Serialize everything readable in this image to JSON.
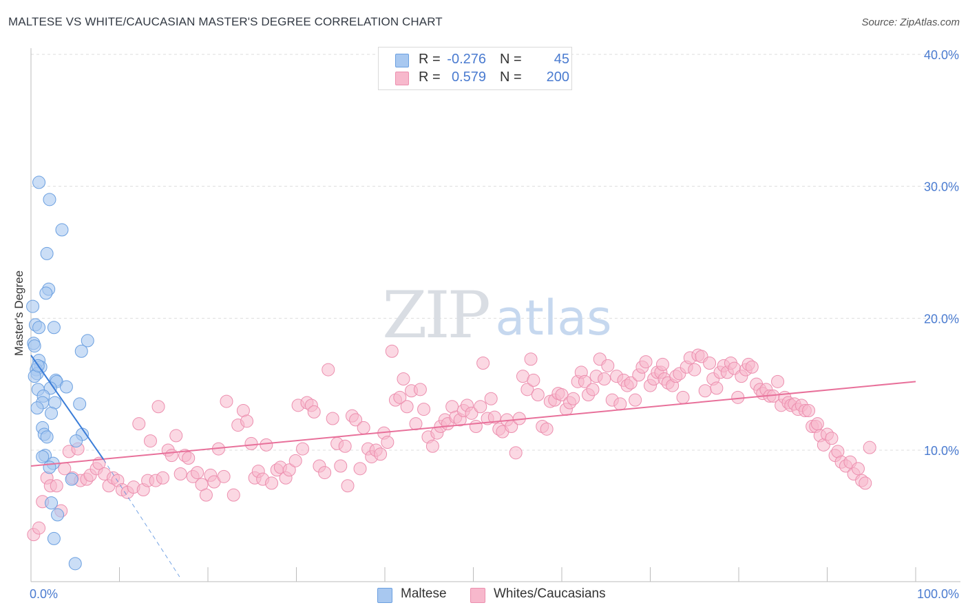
{
  "title": "MALTESE VS WHITE/CAUCASIAN MASTER'S DEGREE CORRELATION CHART",
  "source": "Source: ZipAtlas.com",
  "watermark": {
    "zip": "ZIP",
    "atlas": "atlas"
  },
  "colors": {
    "blue_fill": "#a8c8f0",
    "blue_stroke": "#6a9fe0",
    "blue_line": "#3b7dd8",
    "pink_fill": "#f7b8cc",
    "pink_stroke": "#ec8eae",
    "pink_line": "#e8709a",
    "tick_text": "#4a7bd0",
    "grid": "#dddddd"
  },
  "legend": {
    "rows": [
      {
        "r_label": "R =",
        "r_value": "-0.276",
        "n_label": "N =",
        "n_value": "45",
        "color": "#a8c8f0",
        "border": "#6a9fe0"
      },
      {
        "r_label": "R =",
        "r_value": "0.579",
        "n_label": "N =",
        "n_value": "200",
        "color": "#f7b8cc",
        "border": "#ec8eae"
      }
    ]
  },
  "bottom_legend": [
    {
      "label": "Maltese",
      "color": "#a8c8f0",
      "border": "#6a9fe0"
    },
    {
      "label": "Whites/Caucasians",
      "color": "#f7b8cc",
      "border": "#ec8eae"
    }
  ],
  "chart_data": {
    "type": "scatter",
    "title": "MALTESE VS WHITE/CAUCASIAN MASTER'S DEGREE CORRELATION CHART",
    "xlabel": "",
    "ylabel": "Master's Degree",
    "xlim": [
      0,
      100
    ],
    "ylim": [
      0,
      42
    ],
    "x_tick_labels": [
      {
        "value": 0,
        "label": "0.0%"
      },
      {
        "value": 100,
        "label": "100.0%"
      }
    ],
    "y_tick_labels": [
      {
        "value": 10,
        "label": "10.0%"
      },
      {
        "value": 20,
        "label": "20.0%"
      },
      {
        "value": 30,
        "label": "30.0%"
      },
      {
        "value": 40,
        "label": "40.0%"
      }
    ],
    "series": [
      {
        "name": "Maltese",
        "r": -0.276,
        "n": 45,
        "trend": {
          "x": [
            0,
            8.2
          ],
          "y": [
            17.2,
            9.3
          ],
          "dashed_to": {
            "x": 16.8,
            "y": 0.4
          }
        },
        "points": [
          [
            0.9,
            30.3
          ],
          [
            2.1,
            29.0
          ],
          [
            3.5,
            26.7
          ],
          [
            1.8,
            24.9
          ],
          [
            2.0,
            22.2
          ],
          [
            1.7,
            21.9
          ],
          [
            0.2,
            20.9
          ],
          [
            0.5,
            19.5
          ],
          [
            0.9,
            19.3
          ],
          [
            2.6,
            19.3
          ],
          [
            0.3,
            18.1
          ],
          [
            0.4,
            17.9
          ],
          [
            6.4,
            18.3
          ],
          [
            5.7,
            17.5
          ],
          [
            0.9,
            16.8
          ],
          [
            1.1,
            16.3
          ],
          [
            0.6,
            16.1
          ],
          [
            0.7,
            15.8
          ],
          [
            0.4,
            15.6
          ],
          [
            2.8,
            15.3
          ],
          [
            2.9,
            15.2
          ],
          [
            4.0,
            14.8
          ],
          [
            2.2,
            14.7
          ],
          [
            0.8,
            14.6
          ],
          [
            1.4,
            14.1
          ],
          [
            2.7,
            13.6
          ],
          [
            1.3,
            13.6
          ],
          [
            5.5,
            13.5
          ],
          [
            0.7,
            13.2
          ],
          [
            2.3,
            12.8
          ],
          [
            1.3,
            11.7
          ],
          [
            1.5,
            11.2
          ],
          [
            1.8,
            11.0
          ],
          [
            5.8,
            11.2
          ],
          [
            5.1,
            10.7
          ],
          [
            1.6,
            9.6
          ],
          [
            1.3,
            9.5
          ],
          [
            2.5,
            9.0
          ],
          [
            2.1,
            8.7
          ],
          [
            4.6,
            7.8
          ],
          [
            2.3,
            6.0
          ],
          [
            3.0,
            5.1
          ],
          [
            2.6,
            3.3
          ],
          [
            5.0,
            1.4
          ],
          [
            0.8,
            16.4
          ]
        ]
      },
      {
        "name": "Whites/Caucasians",
        "r": 0.579,
        "n": 200,
        "trend": {
          "x": [
            0,
            100
          ],
          "y": [
            8.8,
            15.2
          ]
        },
        "points": [
          [
            0.3,
            3.6
          ],
          [
            0.9,
            4.1
          ],
          [
            1.3,
            6.1
          ],
          [
            1.8,
            7.9
          ],
          [
            2.2,
            7.3
          ],
          [
            2.9,
            7.3
          ],
          [
            3.4,
            5.4
          ],
          [
            3.8,
            8.6
          ],
          [
            4.3,
            9.9
          ],
          [
            4.7,
            7.9
          ],
          [
            5.3,
            10.1
          ],
          [
            5.6,
            7.7
          ],
          [
            6.3,
            7.8
          ],
          [
            6.7,
            8.1
          ],
          [
            7.4,
            8.6
          ],
          [
            7.7,
            9.0
          ],
          [
            8.3,
            8.2
          ],
          [
            8.8,
            7.3
          ],
          [
            9.3,
            7.9
          ],
          [
            9.8,
            7.7
          ],
          [
            10.3,
            7.0
          ],
          [
            10.9,
            6.8
          ],
          [
            11.6,
            7.2
          ],
          [
            12.2,
            12.0
          ],
          [
            12.7,
            7.0
          ],
          [
            13.2,
            7.7
          ],
          [
            13.5,
            10.7
          ],
          [
            14.1,
            7.7
          ],
          [
            14.4,
            13.3
          ],
          [
            14.9,
            7.9
          ],
          [
            15.5,
            10.0
          ],
          [
            15.9,
            9.6
          ],
          [
            16.4,
            11.1
          ],
          [
            16.9,
            8.2
          ],
          [
            17.4,
            9.6
          ],
          [
            17.8,
            9.4
          ],
          [
            18.3,
            8.0
          ],
          [
            18.8,
            8.3
          ],
          [
            19.3,
            7.4
          ],
          [
            19.8,
            6.6
          ],
          [
            20.3,
            8.1
          ],
          [
            20.7,
            7.6
          ],
          [
            21.2,
            10.1
          ],
          [
            21.8,
            8.0
          ],
          [
            22.1,
            13.7
          ],
          [
            22.9,
            6.6
          ],
          [
            23.4,
            11.9
          ],
          [
            24.0,
            13.0
          ],
          [
            24.4,
            12.2
          ],
          [
            24.9,
            10.5
          ],
          [
            25.3,
            7.9
          ],
          [
            25.7,
            8.4
          ],
          [
            26.2,
            7.8
          ],
          [
            26.6,
            10.4
          ],
          [
            27.2,
            7.5
          ],
          [
            27.8,
            8.5
          ],
          [
            28.2,
            8.7
          ],
          [
            28.8,
            7.9
          ],
          [
            29.2,
            8.5
          ],
          [
            29.9,
            9.2
          ],
          [
            30.2,
            13.4
          ],
          [
            30.7,
            10.1
          ],
          [
            31.2,
            13.6
          ],
          [
            31.7,
            13.4
          ],
          [
            32.0,
            12.9
          ],
          [
            32.6,
            8.8
          ],
          [
            33.2,
            8.3
          ],
          [
            33.6,
            16.1
          ],
          [
            34.1,
            12.4
          ],
          [
            34.6,
            10.5
          ],
          [
            35.0,
            8.8
          ],
          [
            35.5,
            10.3
          ],
          [
            35.8,
            7.3
          ],
          [
            36.3,
            12.6
          ],
          [
            36.7,
            12.3
          ],
          [
            37.2,
            8.6
          ],
          [
            37.6,
            11.7
          ],
          [
            38.1,
            10.1
          ],
          [
            38.5,
            9.5
          ],
          [
            39.0,
            10.0
          ],
          [
            39.5,
            9.7
          ],
          [
            39.9,
            11.3
          ],
          [
            40.3,
            10.6
          ],
          [
            40.8,
            17.5
          ],
          [
            41.2,
            13.8
          ],
          [
            41.7,
            14.0
          ],
          [
            42.1,
            15.4
          ],
          [
            42.5,
            13.3
          ],
          [
            43.0,
            14.5
          ],
          [
            43.5,
            12.0
          ],
          [
            44.0,
            14.6
          ],
          [
            44.4,
            13.1
          ],
          [
            44.9,
            11.0
          ],
          [
            45.4,
            10.3
          ],
          [
            45.9,
            11.3
          ],
          [
            46.3,
            11.8
          ],
          [
            46.8,
            12.3
          ],
          [
            47.1,
            12.0
          ],
          [
            47.6,
            13.3
          ],
          [
            48.0,
            12.5
          ],
          [
            48.5,
            12.3
          ],
          [
            48.9,
            13.0
          ],
          [
            49.3,
            13.4
          ],
          [
            49.8,
            12.8
          ],
          [
            50.3,
            11.8
          ],
          [
            50.8,
            13.3
          ],
          [
            51.1,
            16.6
          ],
          [
            51.6,
            12.4
          ],
          [
            52.0,
            13.9
          ],
          [
            52.4,
            12.5
          ],
          [
            52.9,
            11.6
          ],
          [
            53.3,
            11.4
          ],
          [
            53.8,
            12.3
          ],
          [
            54.3,
            11.8
          ],
          [
            54.8,
            9.8
          ],
          [
            55.2,
            12.4
          ],
          [
            55.6,
            15.6
          ],
          [
            56.1,
            14.6
          ],
          [
            56.5,
            16.9
          ],
          [
            56.8,
            15.3
          ],
          [
            57.3,
            14.2
          ],
          [
            57.8,
            11.8
          ],
          [
            58.3,
            11.6
          ],
          [
            58.7,
            13.7
          ],
          [
            59.2,
            13.8
          ],
          [
            59.6,
            14.3
          ],
          [
            60.0,
            14.2
          ],
          [
            60.5,
            13.1
          ],
          [
            60.9,
            13.6
          ],
          [
            61.3,
            13.9
          ],
          [
            61.8,
            15.2
          ],
          [
            62.2,
            15.9
          ],
          [
            62.6,
            15.2
          ],
          [
            63.0,
            14.2
          ],
          [
            63.5,
            14.6
          ],
          [
            63.9,
            15.6
          ],
          [
            64.3,
            16.9
          ],
          [
            64.8,
            15.4
          ],
          [
            65.2,
            16.4
          ],
          [
            65.7,
            13.8
          ],
          [
            66.2,
            15.6
          ],
          [
            66.6,
            13.5
          ],
          [
            67.0,
            15.3
          ],
          [
            67.4,
            14.9
          ],
          [
            67.8,
            15.1
          ],
          [
            68.3,
            13.8
          ],
          [
            68.7,
            15.7
          ],
          [
            69.1,
            16.3
          ],
          [
            69.5,
            16.7
          ],
          [
            70.0,
            14.9
          ],
          [
            70.4,
            15.4
          ],
          [
            70.8,
            15.9
          ],
          [
            71.2,
            15.9
          ],
          [
            71.6,
            15.4
          ],
          [
            72.0,
            15.1
          ],
          [
            72.5,
            14.9
          ],
          [
            72.9,
            15.6
          ],
          [
            73.3,
            15.8
          ],
          [
            73.7,
            14.0
          ],
          [
            74.1,
            16.3
          ],
          [
            74.5,
            17.0
          ],
          [
            75.0,
            16.1
          ],
          [
            75.4,
            17.2
          ],
          [
            75.8,
            17.1
          ],
          [
            76.2,
            14.5
          ],
          [
            76.7,
            16.6
          ],
          [
            77.1,
            15.4
          ],
          [
            77.5,
            14.7
          ],
          [
            77.9,
            15.9
          ],
          [
            78.3,
            16.4
          ],
          [
            78.7,
            15.9
          ],
          [
            79.1,
            16.6
          ],
          [
            79.5,
            16.2
          ],
          [
            79.9,
            14.0
          ],
          [
            80.3,
            15.6
          ],
          [
            80.8,
            16.1
          ],
          [
            81.1,
            16.5
          ],
          [
            81.5,
            16.3
          ],
          [
            82.0,
            15.0
          ],
          [
            82.4,
            14.6
          ],
          [
            82.7,
            14.3
          ],
          [
            83.1,
            14.6
          ],
          [
            83.5,
            14.1
          ],
          [
            83.9,
            14.1
          ],
          [
            84.4,
            15.2
          ],
          [
            84.8,
            13.4
          ],
          [
            85.2,
            14.0
          ],
          [
            85.6,
            13.6
          ],
          [
            85.9,
            13.4
          ],
          [
            86.3,
            13.5
          ],
          [
            86.7,
            13.1
          ],
          [
            87.1,
            13.4
          ],
          [
            87.5,
            13.0
          ],
          [
            87.9,
            13.0
          ],
          [
            88.3,
            11.8
          ],
          [
            88.7,
            11.8
          ],
          [
            89.2,
            11.1
          ],
          [
            89.6,
            10.4
          ],
          [
            90.0,
            11.2
          ],
          [
            90.5,
            10.9
          ],
          [
            90.9,
            9.6
          ],
          [
            91.2,
            9.9
          ],
          [
            91.6,
            9.1
          ],
          [
            92.1,
            8.8
          ],
          [
            92.6,
            9.1
          ],
          [
            93.0,
            8.2
          ],
          [
            93.5,
            8.6
          ],
          [
            93.9,
            7.7
          ],
          [
            94.3,
            7.5
          ],
          [
            94.8,
            10.2
          ],
          [
            88.9,
            12.0
          ],
          [
            71.4,
            16.5
          ]
        ]
      }
    ]
  }
}
